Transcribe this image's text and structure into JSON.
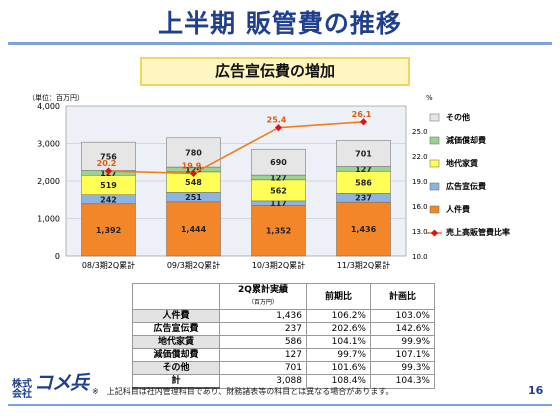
{
  "title": "上半期 販管費の推移",
  "subtitle": "広告宣伝費の増加",
  "chart_data": {
    "type": "bar",
    "stacked": true,
    "unit_label": "（単位：百万円）",
    "right_axis_unit": "%",
    "categories": [
      "08/3期2Q累計",
      "09/3期2Q累計",
      "10/3期2Q累計",
      "11/3期2Q累計"
    ],
    "series": [
      {
        "name": "人件費",
        "color": "#f4862a",
        "values": [
          1392,
          1444,
          1352,
          1436
        ]
      },
      {
        "name": "広告宣伝費",
        "color": "#8db3e2",
        "values": [
          242,
          251,
          117,
          237
        ]
      },
      {
        "name": "地代家賃",
        "color": "#ffff55",
        "values": [
          519,
          548,
          562,
          586
        ]
      },
      {
        "name": "減価償却費",
        "color": "#9ad38f",
        "values": [
          127,
          129,
          127,
          127
        ]
      },
      {
        "name": "その他",
        "color": "#e6e6e6",
        "values": [
          756,
          780,
          690,
          701
        ]
      }
    ],
    "line": {
      "name": "売上高販管費比率",
      "color": "#ef7d1a",
      "values": [
        20.2,
        19.9,
        25.4,
        26.1
      ],
      "marker_color": "#e01010"
    },
    "ylim": [
      0,
      4000
    ],
    "yticks": [
      "0",
      "1,000",
      "2,000",
      "3,000",
      "4,000"
    ],
    "y2lim": [
      10,
      28
    ],
    "y2ticks": [
      "10.0",
      "13.0",
      "16.0",
      "19.0",
      "22.0",
      "25.0"
    ],
    "legend_placement": "right",
    "legend_order": [
      "その他",
      "減価償却費",
      "地代家賃",
      "広告宣伝費",
      "人件費",
      "売上高販管費比率"
    ]
  },
  "table": {
    "headers": [
      "",
      "2Q累計実績",
      "（百万円）",
      "前期比",
      "計画比"
    ],
    "rows": [
      {
        "label": "人件費",
        "value": "1,436",
        "yoy": "106.2%",
        "plan": "103.0%"
      },
      {
        "label": "広告宣伝費",
        "value": "237",
        "yoy": "202.6%",
        "plan": "142.6%"
      },
      {
        "label": "地代家賃",
        "value": "586",
        "yoy": "104.1%",
        "plan": "99.9%"
      },
      {
        "label": "減価償却費",
        "value": "127",
        "yoy": "99.7%",
        "plan": "107.1%"
      },
      {
        "label": "その他",
        "value": "701",
        "yoy": "101.6%",
        "plan": "99.3%"
      },
      {
        "label": "計",
        "value": "3,088",
        "yoy": "108.4%",
        "plan": "104.3%"
      }
    ]
  },
  "logo": {
    "small": "株式会社",
    "big": "コメ兵"
  },
  "footnote": "※　上記科目は社内管理科目であり、財務諸表等の科目とは異なる場合があります。",
  "page_number": "16",
  "colors": {
    "title": "#1f3f8f",
    "accent_line": "#7da2d8",
    "subtitle_bg": "#fff6c2"
  }
}
